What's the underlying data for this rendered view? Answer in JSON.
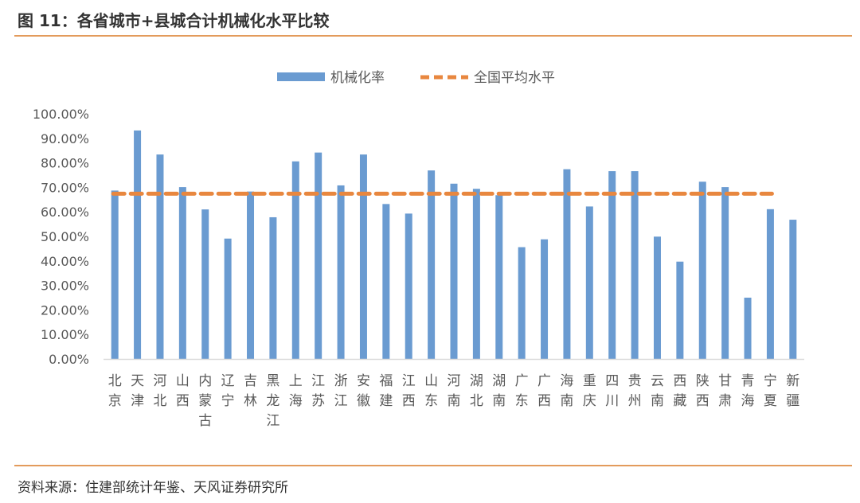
{
  "title": "图 11：各省城市+县城合计机械化水平比较",
  "source": "资料来源：住建部统计年鉴、天风证券研究所",
  "chart_data": {
    "type": "bar",
    "title": "",
    "xlabel": "",
    "ylabel": "",
    "ylim": [
      0,
      100
    ],
    "yticks": [
      "0.00%",
      "10.00%",
      "20.00%",
      "30.00%",
      "40.00%",
      "50.00%",
      "60.00%",
      "70.00%",
      "80.00%",
      "90.00%",
      "100.00%"
    ],
    "legend_position": "top",
    "grid": false,
    "categories": [
      "北京",
      "天津",
      "河北",
      "山西",
      "内蒙古",
      "辽宁",
      "吉林",
      "黑龙江",
      "上海",
      "江苏",
      "浙江",
      "安徽",
      "福建",
      "江西",
      "山东",
      "河南",
      "湖北",
      "湖南",
      "广东",
      "广西",
      "海南",
      "重庆",
      "四川",
      "贵州",
      "云南",
      "西藏",
      "陕西",
      "甘肃",
      "青海",
      "宁夏",
      "新疆"
    ],
    "series": [
      {
        "name": "机械化率",
        "type": "bar",
        "color": "#6a9bd1",
        "values": [
          68.7,
          93.2,
          83.4,
          70.1,
          61.0,
          49.1,
          68.3,
          57.8,
          80.6,
          84.2,
          70.8,
          83.4,
          63.2,
          59.3,
          76.9,
          71.5,
          69.4,
          66.8,
          45.6,
          48.8,
          77.4,
          62.2,
          76.6,
          76.6,
          49.9,
          39.7,
          72.3,
          70.1,
          25.0,
          61.1,
          56.8
        ]
      },
      {
        "name": "全国平均水平",
        "type": "line",
        "style": "dashed",
        "color": "#e8873f",
        "value": 67.4,
        "range": [
          "北京",
          "宁夏"
        ]
      }
    ]
  }
}
